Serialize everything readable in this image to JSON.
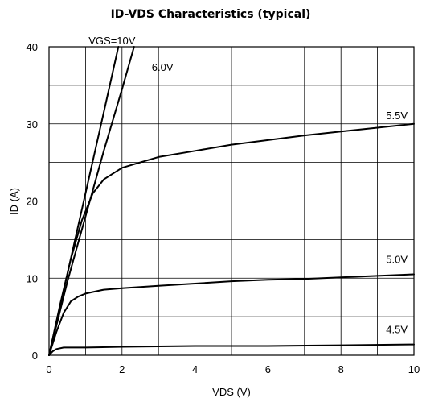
{
  "chart_data": {
    "type": "line",
    "title": "ID-VDS Characteristics (typical)",
    "xlabel": "VDS (V)",
    "ylabel": "ID (A)",
    "xlim": [
      0,
      10
    ],
    "ylim": [
      0,
      40
    ],
    "xticks": [
      "0",
      "2",
      "4",
      "6",
      "8",
      "10"
    ],
    "yticks": [
      "0",
      "10",
      "20",
      "30",
      "40"
    ],
    "grid": true,
    "series": [
      {
        "name": "VGS=10V",
        "x": [
          0,
          0.5,
          1.0,
          1.5,
          1.9
        ],
        "y": [
          0,
          10.5,
          21,
          31.5,
          40
        ]
      },
      {
        "name": "6.0V",
        "x": [
          0,
          0.5,
          1.0,
          1.5,
          2.0,
          2.33
        ],
        "y": [
          0,
          9.5,
          18,
          26.5,
          34.5,
          40
        ]
      },
      {
        "name": "5.5V",
        "x": [
          0,
          0.3,
          0.6,
          0.9,
          1.2,
          1.5,
          2.0,
          2.5,
          3.0,
          4.0,
          5.0,
          6.0,
          7.0,
          8.0,
          9.0,
          10.0
        ],
        "y": [
          0,
          6.5,
          12.5,
          17.5,
          21.0,
          22.8,
          24.3,
          25.0,
          25.7,
          26.5,
          27.3,
          27.9,
          28.5,
          29.0,
          29.5,
          30.0
        ]
      },
      {
        "name": "5.0V",
        "x": [
          0,
          0.2,
          0.4,
          0.6,
          0.8,
          1.0,
          1.5,
          2.0,
          3.0,
          4.0,
          5.0,
          6.0,
          7.0,
          8.0,
          9.0,
          10.0
        ],
        "y": [
          0,
          3.0,
          5.5,
          7.0,
          7.6,
          8.0,
          8.5,
          8.7,
          9.0,
          9.3,
          9.6,
          9.8,
          9.9,
          10.1,
          10.3,
          10.5
        ]
      },
      {
        "name": "4.5V",
        "x": [
          0,
          0.1,
          0.2,
          0.4,
          0.6,
          1.0,
          2.0,
          4.0,
          6.0,
          8.0,
          10.0
        ],
        "y": [
          0,
          0.5,
          0.8,
          1.0,
          1.0,
          1.0,
          1.1,
          1.2,
          1.2,
          1.3,
          1.4
        ]
      }
    ]
  }
}
